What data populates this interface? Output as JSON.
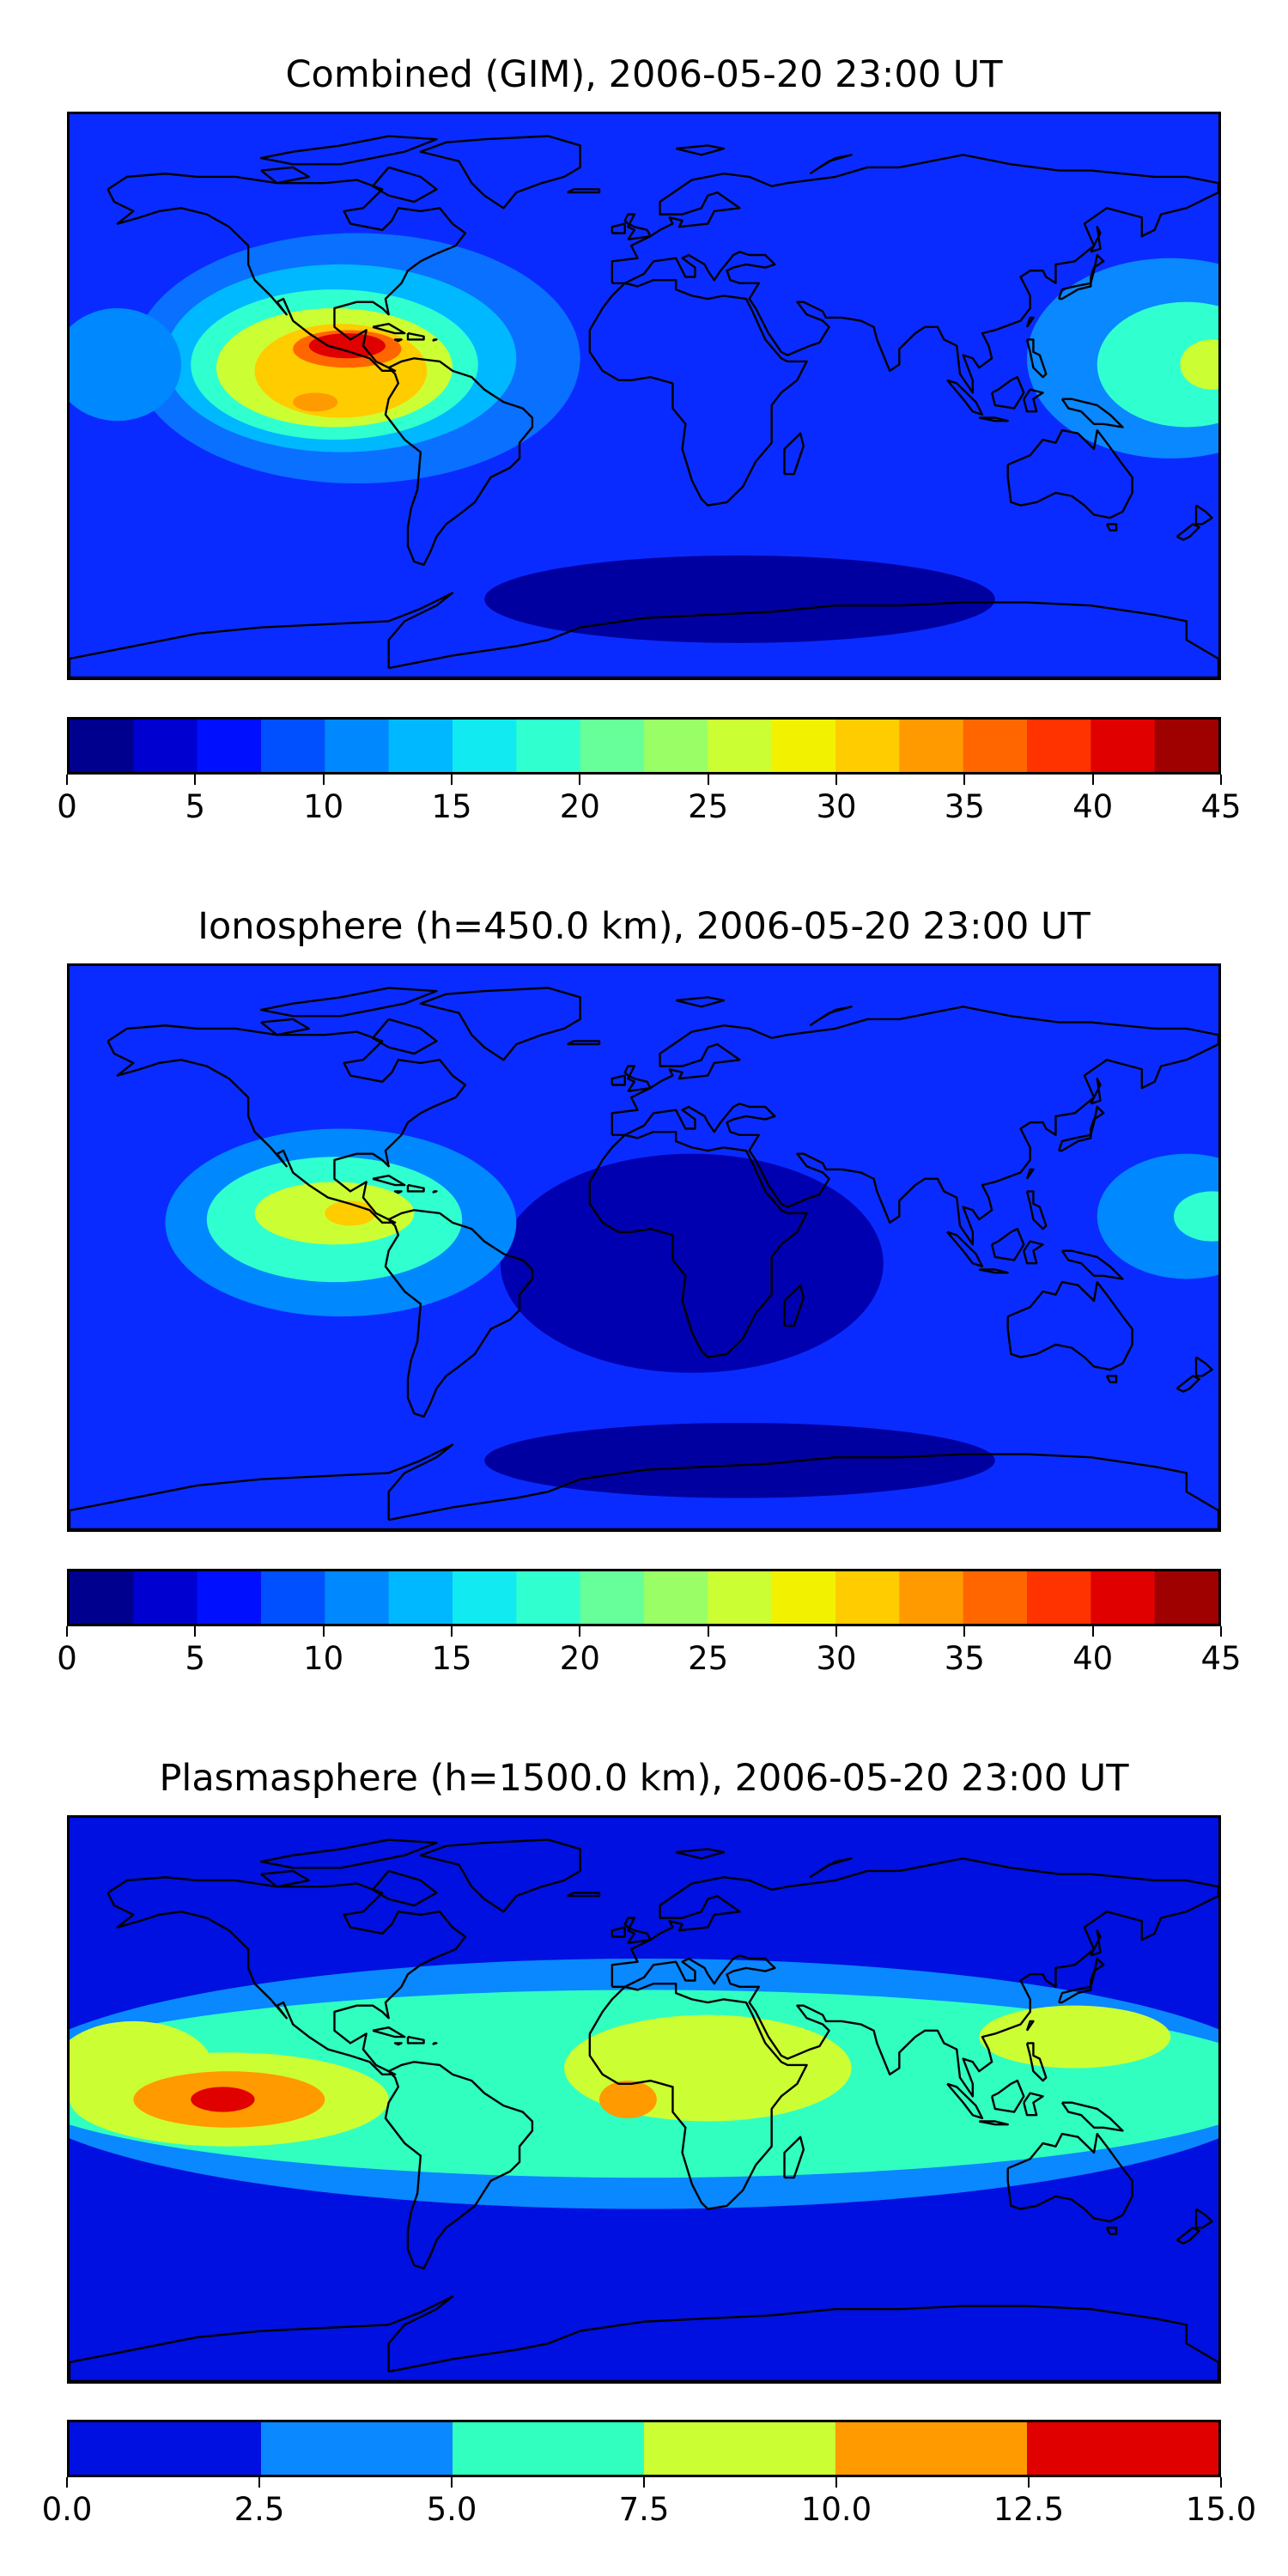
{
  "panels": [
    {
      "title": "Combined (GIM), 2006-05-20 23:00 UT",
      "colorbar": {
        "min": 0,
        "max": 45,
        "bounds": [
          0,
          2.5,
          5,
          7.5,
          10,
          12.5,
          15,
          17.5,
          20,
          22.5,
          25,
          27.5,
          30,
          32.5,
          35,
          37.5,
          40,
          42.5,
          45
        ],
        "colors": [
          "#00008f",
          "#0000d0",
          "#0010ff",
          "#0050ff",
          "#0088ff",
          "#00b8ff",
          "#10eaf0",
          "#30ffd0",
          "#66ff9a",
          "#9aff66",
          "#ccff33",
          "#f2f200",
          "#ffcc00",
          "#ff9a00",
          "#ff6600",
          "#ff3300",
          "#e00000",
          "#9f0000"
        ],
        "tick_values": [
          0,
          5,
          10,
          15,
          20,
          25,
          30,
          35,
          40,
          45
        ],
        "tick_labels": [
          "0",
          "5",
          "10",
          "15",
          "20",
          "25",
          "30",
          "35",
          "40",
          "45"
        ]
      },
      "field": {
        "background": "#0a2bff",
        "blobs": [
          {
            "lon": -90,
            "lat": 12,
            "rx": 70,
            "ry": 40,
            "color": "#0a70ff"
          },
          {
            "lon": -95,
            "lat": 12,
            "rx": 55,
            "ry": 30,
            "color": "#00b8ff"
          },
          {
            "lon": -97,
            "lat": 10,
            "rx": 45,
            "ry": 24,
            "color": "#30ffd0"
          },
          {
            "lon": -97,
            "lat": 9,
            "rx": 37,
            "ry": 19,
            "color": "#ccff33"
          },
          {
            "lon": -95,
            "lat": 8,
            "rx": 27,
            "ry": 15,
            "color": "#ffcc00"
          },
          {
            "lon": -93,
            "lat": 15,
            "rx": 17,
            "ry": 6,
            "color": "#ff6600"
          },
          {
            "lon": -93,
            "lat": 16,
            "rx": 12,
            "ry": 4,
            "color": "#e00000"
          },
          {
            "lon": -103,
            "lat": -2,
            "rx": 7,
            "ry": 3,
            "color": "#ff9a00"
          },
          {
            "lon": 165,
            "lat": 12,
            "rx": 45,
            "ry": 32,
            "color": "#0a88ff"
          },
          {
            "lon": 170,
            "lat": 10,
            "rx": 28,
            "ry": 20,
            "color": "#30ffd0"
          },
          {
            "lon": 178,
            "lat": 10,
            "rx": 10,
            "ry": 8,
            "color": "#ccff33"
          },
          {
            "lon": -165,
            "lat": 10,
            "rx": 20,
            "ry": 18,
            "color": "#0088ff"
          },
          {
            "lon": 30,
            "lat": -65,
            "rx": 80,
            "ry": 14,
            "color": "#0000a0"
          }
        ]
      }
    },
    {
      "title": "Ionosphere  (h=450.0 km), 2006-05-20 23:00 UT",
      "colorbar": {
        "min": 0,
        "max": 45,
        "bounds": [
          0,
          2.5,
          5,
          7.5,
          10,
          12.5,
          15,
          17.5,
          20,
          22.5,
          25,
          27.5,
          30,
          32.5,
          35,
          37.5,
          40,
          42.5,
          45
        ],
        "colors": [
          "#00008f",
          "#0000d0",
          "#0010ff",
          "#0050ff",
          "#0088ff",
          "#00b8ff",
          "#10eaf0",
          "#30ffd0",
          "#66ff9a",
          "#9aff66",
          "#ccff33",
          "#f2f200",
          "#ffcc00",
          "#ff9a00",
          "#ff6600",
          "#ff3300",
          "#e00000",
          "#9f0000"
        ],
        "tick_values": [
          0,
          5,
          10,
          15,
          20,
          25,
          30,
          35,
          40,
          45
        ],
        "tick_labels": [
          "0",
          "5",
          "10",
          "15",
          "20",
          "25",
          "30",
          "35",
          "40",
          "45"
        ]
      },
      "field": {
        "background": "#0a2bff",
        "blobs": [
          {
            "lon": 15,
            "lat": -5,
            "rx": 60,
            "ry": 35,
            "color": "#0000b0"
          },
          {
            "lon": -95,
            "lat": 8,
            "rx": 55,
            "ry": 30,
            "color": "#0088ff"
          },
          {
            "lon": -97,
            "lat": 9,
            "rx": 40,
            "ry": 20,
            "color": "#30ffd0"
          },
          {
            "lon": -97,
            "lat": 11,
            "rx": 25,
            "ry": 10,
            "color": "#ccff33"
          },
          {
            "lon": -92,
            "lat": 11,
            "rx": 8,
            "ry": 4,
            "color": "#ffcc00"
          },
          {
            "lon": 170,
            "lat": 10,
            "rx": 28,
            "ry": 20,
            "color": "#0088ff"
          },
          {
            "lon": 178,
            "lat": 10,
            "rx": 12,
            "ry": 8,
            "color": "#30ffd0"
          },
          {
            "lon": 30,
            "lat": -68,
            "rx": 80,
            "ry": 12,
            "color": "#0000a0"
          }
        ]
      }
    },
    {
      "title": "Plasmasphere (h=1500.0 km), 2006-05-20 23:00 UT",
      "colorbar": {
        "min": 0,
        "max": 15,
        "bounds": [
          0,
          2.5,
          5,
          7.5,
          10,
          12.5,
          15
        ],
        "colors": [
          "#0010e0",
          "#0a88ff",
          "#30ffc0",
          "#ccff33",
          "#ff9a00",
          "#e00000"
        ],
        "tick_values": [
          0,
          2.5,
          5,
          7.5,
          10,
          12.5,
          15
        ],
        "tick_labels": [
          "0.0",
          "2.5",
          "5.0",
          "7.5",
          "10.0",
          "12.5",
          "15.0"
        ]
      },
      "field": {
        "background": "#0010e0",
        "blobs": [
          {
            "lon": 0,
            "lat": 5,
            "rx": 200,
            "ry": 40,
            "color": "#0a88ff"
          },
          {
            "lon": 0,
            "lat": 5,
            "rx": 200,
            "ry": 30,
            "color": "#30ffc0"
          },
          {
            "lon": -130,
            "lat": 0,
            "rx": 50,
            "ry": 15,
            "color": "#ccff33"
          },
          {
            "lon": 20,
            "lat": 10,
            "rx": 45,
            "ry": 17,
            "color": "#ccff33"
          },
          {
            "lon": 135,
            "lat": 20,
            "rx": 30,
            "ry": 10,
            "color": "#ccff33"
          },
          {
            "lon": -160,
            "lat": 10,
            "rx": 25,
            "ry": 15,
            "color": "#ccff33"
          },
          {
            "lon": -130,
            "lat": 0,
            "rx": 30,
            "ry": 9,
            "color": "#ff9a00"
          },
          {
            "lon": -132,
            "lat": 0,
            "rx": 10,
            "ry": 4,
            "color": "#e00000"
          },
          {
            "lon": -5,
            "lat": 0,
            "rx": 9,
            "ry": 6,
            "color": "#ff9a00"
          }
        ]
      }
    }
  ],
  "style": {
    "coastline_color": "#000000",
    "frame_color": "#000000"
  }
}
